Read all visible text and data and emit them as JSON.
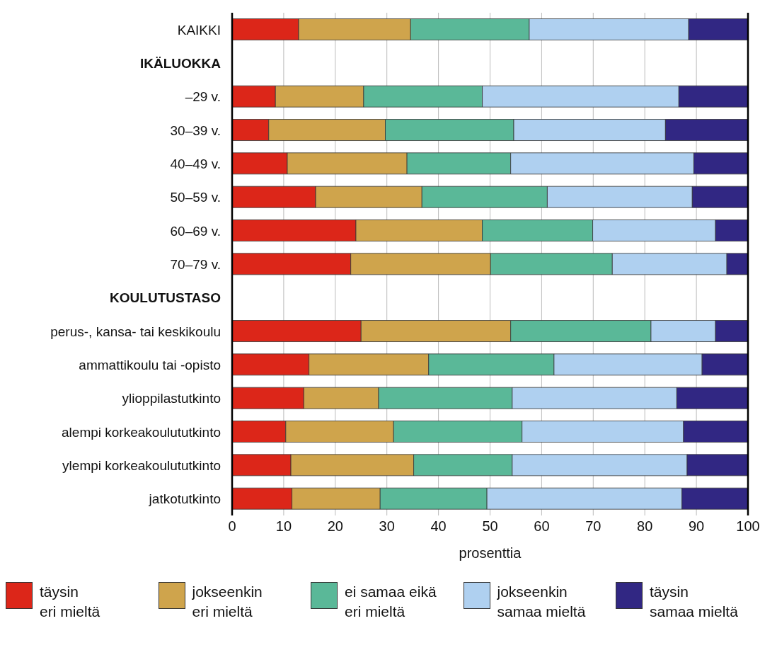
{
  "chart_data": {
    "type": "bar",
    "orientation": "horizontal",
    "stacked": true,
    "xlabel": "prosenttia",
    "categories": [
      "KAIKKI",
      "IKÄLUOKKA",
      "–29 v.",
      "30–39 v.",
      "40–49 v.",
      "50–59 v.",
      "60–69 v.",
      "70–79 v.",
      "KOULUTUSTASO",
      "perus-, kansa- tai keskikoulu",
      "ammattikoulu tai -opisto",
      "ylioppilastutkinto",
      "alempi korkeakoulututkinto",
      "ylempi korkeakoulututkinto",
      "jatkotutkinto"
    ],
    "series": [
      {
        "name": "täysin\neri mieltä",
        "color": "#dc2619",
        "values": [
          12.9,
          null,
          8.4,
          7.1,
          10.7,
          16.2,
          24.0,
          23.0,
          null,
          25.0,
          14.9,
          13.9,
          10.4,
          11.4,
          11.6
        ]
      },
      {
        "name": "jokseenkin\neri mieltä",
        "color": "#cfa44c",
        "values": [
          21.7,
          null,
          17.1,
          22.6,
          23.2,
          20.6,
          24.5,
          27.1,
          null,
          29.0,
          23.2,
          14.5,
          20.9,
          23.8,
          17.1
        ]
      },
      {
        "name": "ei samaa eikä\neri mieltä",
        "color": "#5ab898",
        "values": [
          23.0,
          null,
          23.0,
          24.9,
          20.1,
          24.3,
          21.4,
          23.6,
          null,
          27.2,
          24.3,
          25.9,
          24.9,
          19.1,
          20.7
        ]
      },
      {
        "name": "jokseenkin\nsamaa mieltä",
        "color": "#afd0f0",
        "values": [
          30.9,
          null,
          38.1,
          29.4,
          35.5,
          28.1,
          23.8,
          22.2,
          null,
          12.5,
          28.7,
          31.9,
          31.3,
          33.9,
          37.8
        ]
      },
      {
        "name": "täysin\nsamaa mieltä",
        "color": "#312783",
        "values": [
          11.5,
          null,
          13.4,
          16.0,
          10.5,
          10.8,
          6.3,
          4.1,
          null,
          6.3,
          8.9,
          13.8,
          12.5,
          11.8,
          12.8
        ]
      }
    ],
    "xlim": [
      0,
      100
    ],
    "xticks": [
      0,
      10,
      20,
      30,
      40,
      50,
      60,
      70,
      80,
      90,
      100
    ],
    "grid": "x",
    "legend": "bottom"
  }
}
